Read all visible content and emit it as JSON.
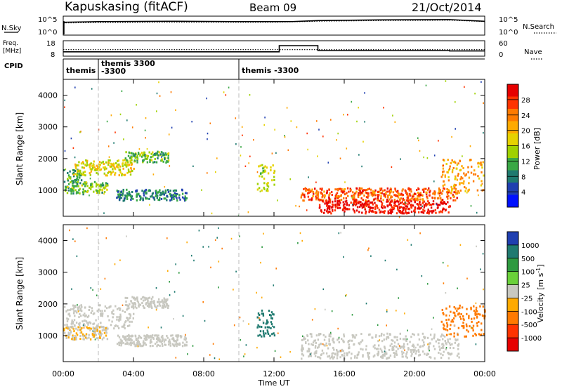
{
  "header": {
    "station": "Kapuskasing (fitACF)",
    "beam": "Beam 09",
    "date": "21/Oct/2014"
  },
  "top_panels": {
    "nsky_label": "N.Sky",
    "nsky_ticks": [
      "10^5",
      "10^0"
    ],
    "nsearch_ticks": [
      "10^5",
      "10^0"
    ],
    "nsearch_label": "N.Search",
    "freq_label_line1": "Freq.",
    "freq_label_line2": "[MHz]",
    "freq_ticks": [
      "18",
      "8"
    ],
    "nave_ticks": [
      "60",
      "0"
    ],
    "nave_label": "Nave",
    "cpid_label": "CPID",
    "cpid_segments": [
      {
        "label_line1": "themis",
        "label_line2": "",
        "start_hour": 0
      },
      {
        "label_line1": "themis  3300",
        "label_line2": "-3300",
        "start_hour": 2
      },
      {
        "label_line1": "themis  -3300",
        "label_line2": "",
        "start_hour": 10
      }
    ]
  },
  "x_axis": {
    "title": "Time UT",
    "ticks": [
      "00:00",
      "04:00",
      "08:00",
      "12:00",
      "16:00",
      "20:00",
      "00:00"
    ]
  },
  "panels": {
    "power": {
      "ylabel": "Slant Range [km]",
      "yticks": [
        "4000",
        "3000",
        "2000",
        "1000"
      ],
      "cbar_title": "Power [dB]",
      "cbar_ticks": [
        "28",
        "24",
        "20",
        "16",
        "12",
        "8",
        "4"
      ],
      "cbar_colors": [
        "#e60000",
        "#ff3300",
        "#ff7a00",
        "#ffaa00",
        "#e6d200",
        "#9fd200",
        "#3aa845",
        "#1f7a70",
        "#1f3fb0",
        "#0010ff"
      ]
    },
    "velocity": {
      "ylabel": "Slant Range [km]",
      "yticks": [
        "4000",
        "3000",
        "2000",
        "1000"
      ],
      "cbar_title": "Velocity  [m s",
      "cbar_title_sup": "-1",
      "cbar_title_end": "]",
      "cbar_ticks": [
        "1000",
        "500",
        "100",
        "25",
        "-25",
        "-100",
        "-500",
        "-1000"
      ],
      "cbar_colors": [
        "#1f3fb0",
        "#1f7a70",
        "#2e9a40",
        "#6ad13a",
        "#c8c8c0",
        "#ffaa00",
        "#ff7a00",
        "#ff3300",
        "#e60000"
      ]
    }
  },
  "chart_data": [
    {
      "type": "line",
      "name": "sky-noise-and-search-noise",
      "x_unit": "hours UT",
      "series": [
        {
          "name": "N.Sky",
          "x": [
            0,
            0.1,
            2,
            6,
            10,
            13,
            14.5,
            18,
            22,
            24
          ],
          "values": [
            3.2,
            3.6,
            3.8,
            3.9,
            3.8,
            3.8,
            4.1,
            4.3,
            4.4,
            3.9
          ]
        },
        {
          "name": "N.Search",
          "x": [
            0,
            6,
            12,
            14.5,
            18,
            22,
            24
          ],
          "values": [
            3.4,
            3.6,
            3.6,
            3.9,
            4.1,
            4.2,
            3.8
          ]
        }
      ],
      "ylim": [
        0,
        5
      ]
    },
    {
      "type": "line",
      "name": "frequency-and-nave",
      "x_unit": "hours UT",
      "series": [
        {
          "name": "Freq",
          "x": [
            0,
            12.3,
            12.3,
            14.5,
            14.5,
            22,
            22,
            24
          ],
          "values": [
            10.6,
            10.6,
            15,
            15,
            11.5,
            11.5,
            11.2,
            11.2
          ]
        },
        {
          "name": "Nave",
          "x": [
            0,
            24
          ],
          "values": [
            25,
            25
          ]
        }
      ],
      "freq_ylim": [
        8,
        18
      ],
      "nave_ylim": [
        0,
        60
      ]
    },
    {
      "type": "heatmap",
      "name": "power",
      "x_range_hours": [
        0,
        24
      ],
      "y_range_km": [
        180,
        4500
      ],
      "value_unit": "dB",
      "zlim": [
        0,
        30
      ],
      "regions": [
        {
          "t0": 0.0,
          "t1": 1.0,
          "r0": 1250,
          "r1": 1700,
          "value": 10
        },
        {
          "t0": 0.5,
          "t1": 4.0,
          "r0": 1500,
          "r1": 2000,
          "value": 16
        },
        {
          "t0": 3.5,
          "t1": 6.0,
          "r0": 1900,
          "r1": 2250,
          "value": 12
        },
        {
          "t0": 0.0,
          "t1": 2.5,
          "r0": 900,
          "r1": 1300,
          "value": 12
        },
        {
          "t0": 3.0,
          "t1": 7.0,
          "r0": 700,
          "r1": 1050,
          "value": 8
        },
        {
          "t0": 11.0,
          "t1": 12.0,
          "r0": 1000,
          "r1": 1900,
          "value": 14
        },
        {
          "t0": 13.5,
          "t1": 22.5,
          "r0": 700,
          "r1": 1100,
          "value": 24
        },
        {
          "t0": 14.5,
          "t1": 22.0,
          "r0": 300,
          "r1": 700,
          "value": 28
        },
        {
          "t0": 21.5,
          "t1": 24.0,
          "r0": 1000,
          "r1": 2000,
          "value": 20
        }
      ]
    },
    {
      "type": "heatmap",
      "name": "velocity",
      "x_range_hours": [
        0,
        24
      ],
      "y_range_km": [
        180,
        4500
      ],
      "value_unit": "m/s",
      "zlim": [
        -1000,
        1000
      ],
      "regions": [
        {
          "t0": 0.0,
          "t1": 4.0,
          "r0": 1250,
          "r1": 2000,
          "value": 0
        },
        {
          "t0": 3.5,
          "t1": 6.0,
          "r0": 1900,
          "r1": 2250,
          "value": 0
        },
        {
          "t0": 0.0,
          "t1": 2.5,
          "r0": 900,
          "r1": 1300,
          "value": -20
        },
        {
          "t0": 3.0,
          "t1": 7.0,
          "r0": 700,
          "r1": 1050,
          "value": 0
        },
        {
          "t0": 11.0,
          "t1": 12.0,
          "r0": 1000,
          "r1": 1900,
          "value": 150
        },
        {
          "t0": 13.5,
          "t1": 22.5,
          "r0": 300,
          "r1": 1100,
          "value": 0
        },
        {
          "t0": 21.5,
          "t1": 24.0,
          "r0": 1000,
          "r1": 2000,
          "value": -300
        }
      ]
    }
  ]
}
